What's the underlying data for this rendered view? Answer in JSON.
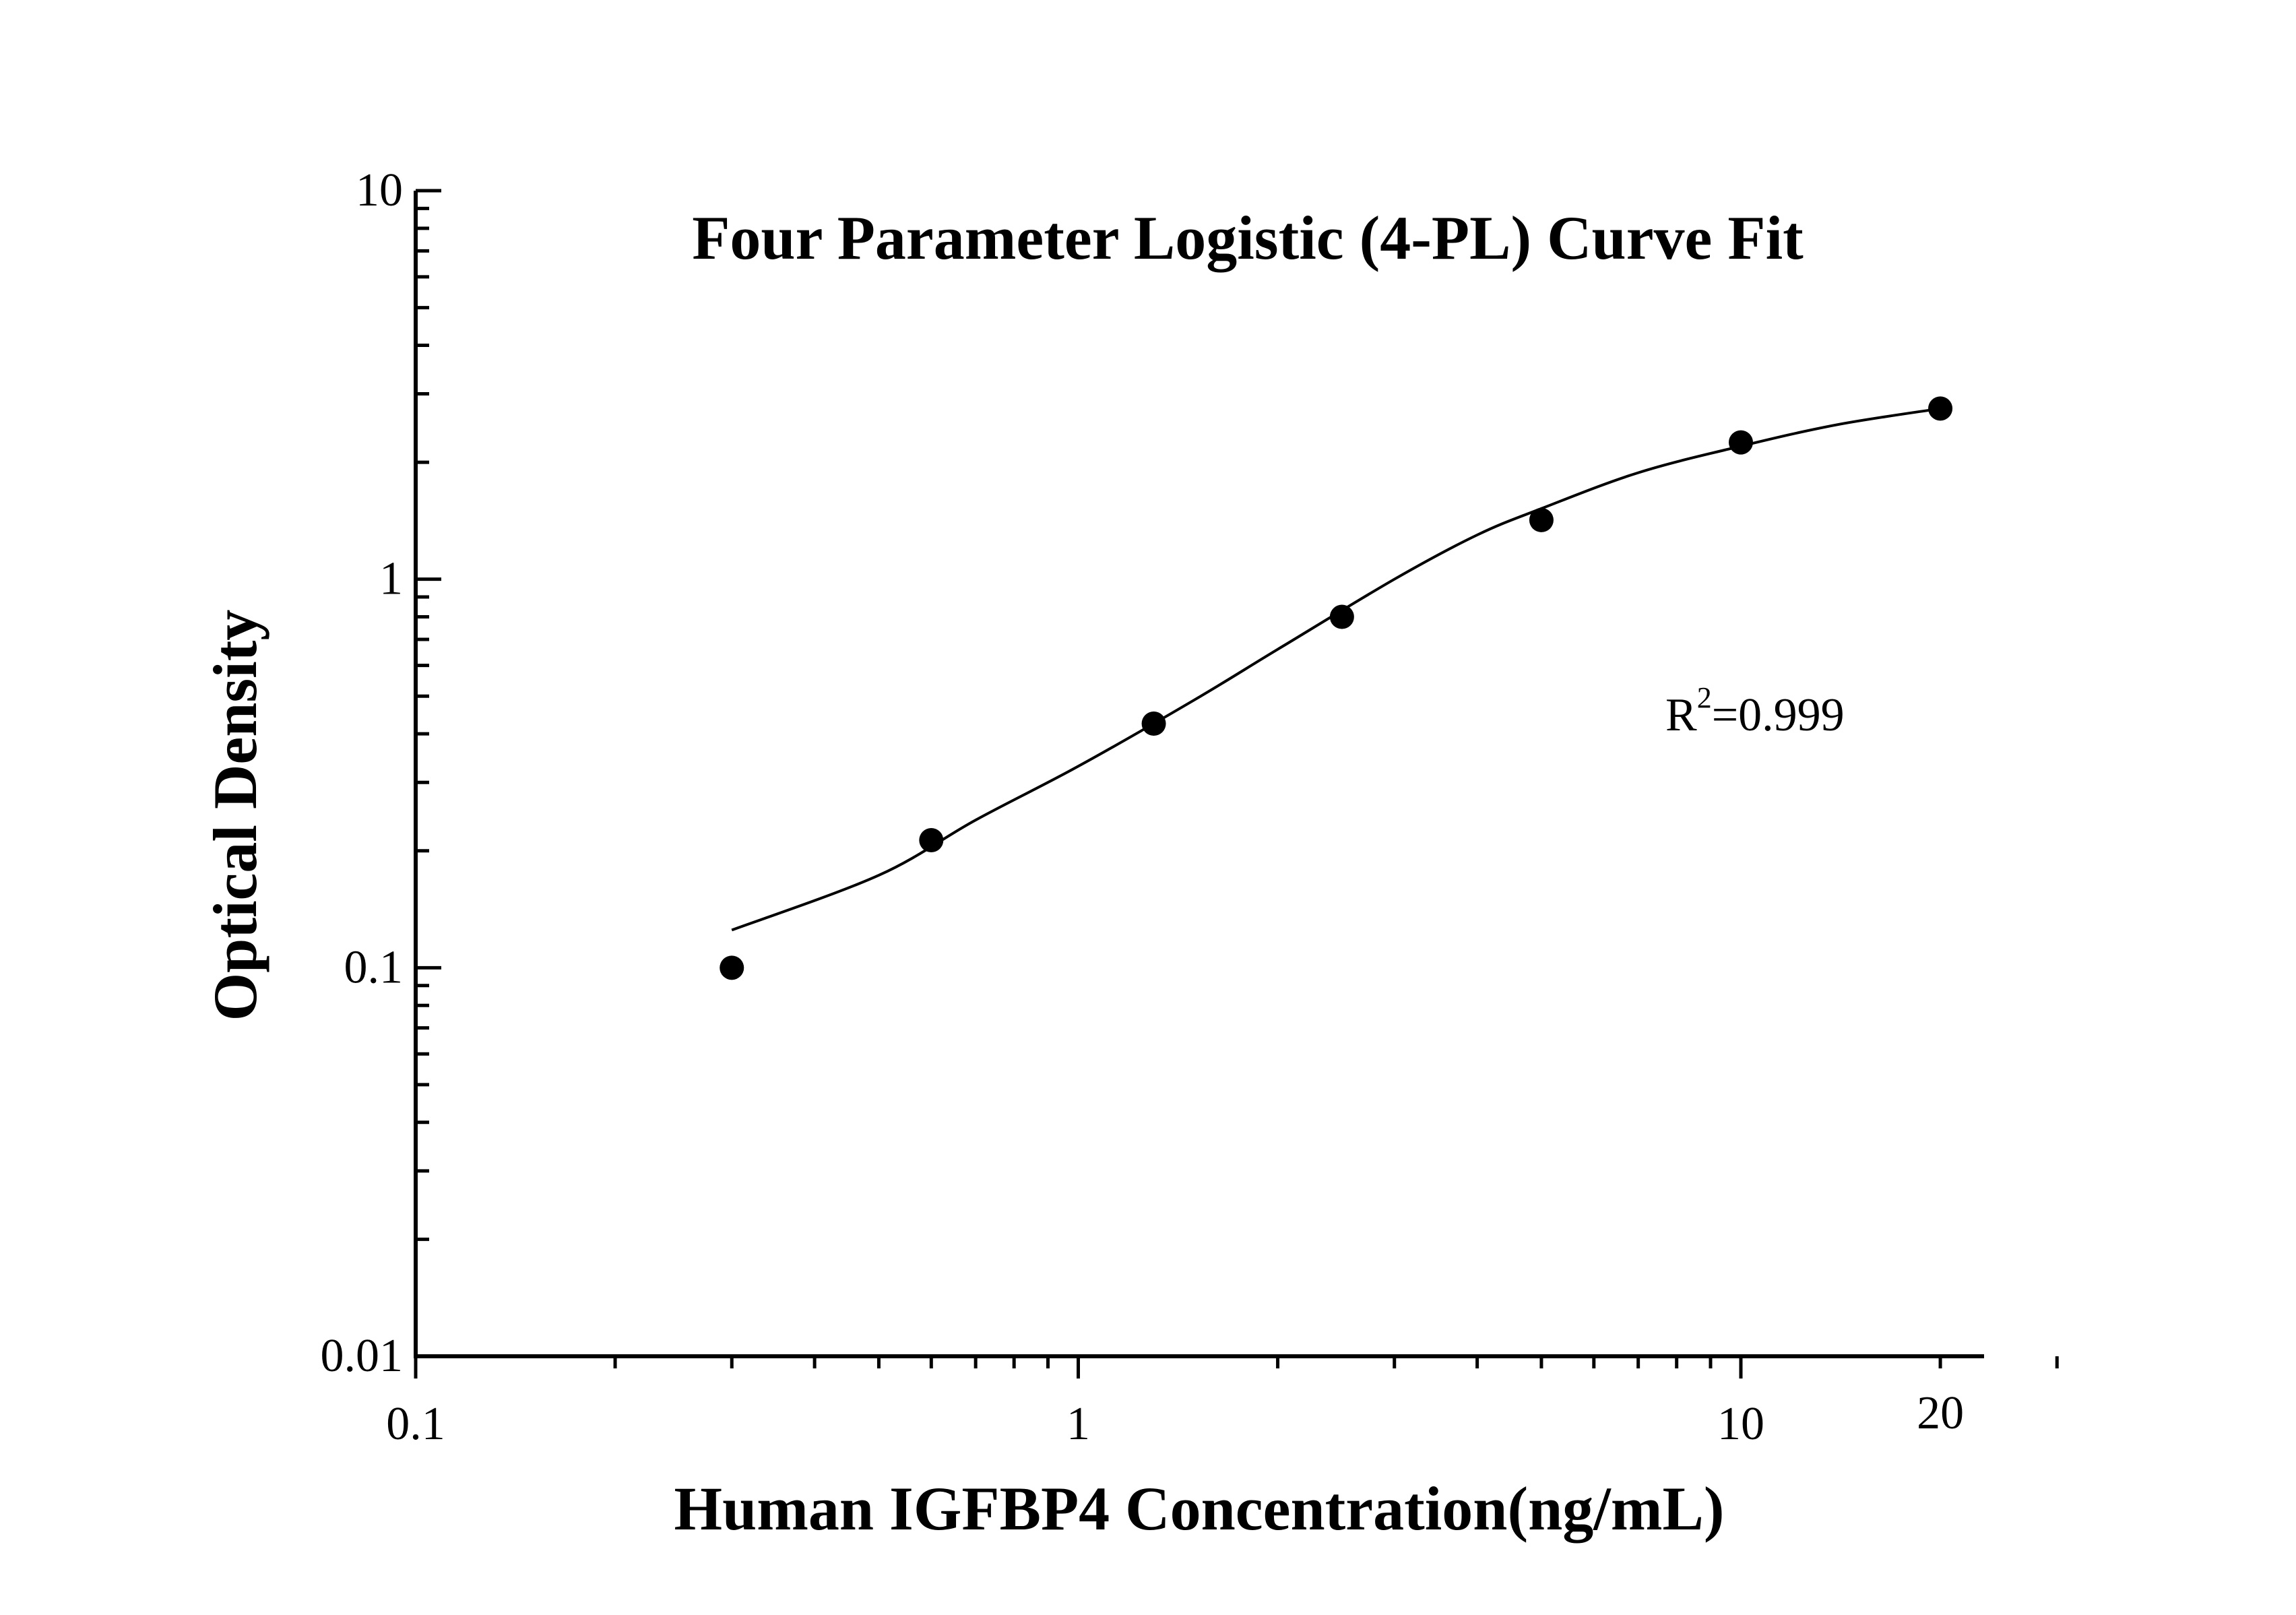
{
  "chart_data": {
    "type": "scatter",
    "title": "Four Parameter Logistic (4-PL) Curve Fit",
    "xlabel": "Human IGFBP4 Concentration(ng/mL)",
    "ylabel": "Optical Density",
    "x_scale": "log",
    "y_scale": "log",
    "xlim": [
      0.1,
      30
    ],
    "ylim": [
      0.01,
      10
    ],
    "x_ticks": [
      {
        "value": 0.1,
        "label": "0.1"
      },
      {
        "value": 1,
        "label": "1"
      },
      {
        "value": 10,
        "label": "10"
      },
      {
        "value": 20,
        "label": "20"
      }
    ],
    "y_ticks": [
      {
        "value": 0.01,
        "label": "0.01"
      },
      {
        "value": 0.1,
        "label": "0.1"
      },
      {
        "value": 1,
        "label": "1"
      },
      {
        "value": 10,
        "label": "10"
      }
    ],
    "points": {
      "x": [
        0.3,
        0.6,
        1.3,
        2.5,
        5,
        10,
        20
      ],
      "y": [
        0.1,
        0.213,
        0.425,
        0.8,
        1.42,
        2.25,
        2.75
      ]
    },
    "fit_curve": {
      "model": "4-PL",
      "x": [
        0.3,
        0.5,
        0.7,
        1.0,
        1.5,
        2.0,
        3.0,
        4.0,
        5.0,
        7.0,
        10.0,
        14.0,
        20.0
      ],
      "y": [
        0.125,
        0.173,
        0.24,
        0.33,
        0.49,
        0.66,
        1.0,
        1.3,
        1.52,
        1.88,
        2.2,
        2.5,
        2.75
      ]
    },
    "annotation": {
      "base": "R",
      "superscript": "2",
      "value": "=0.999"
    },
    "grid": false,
    "legend": "none",
    "colors": {
      "marker": "#000000",
      "curve": "#000000",
      "axis": "#000000"
    }
  }
}
